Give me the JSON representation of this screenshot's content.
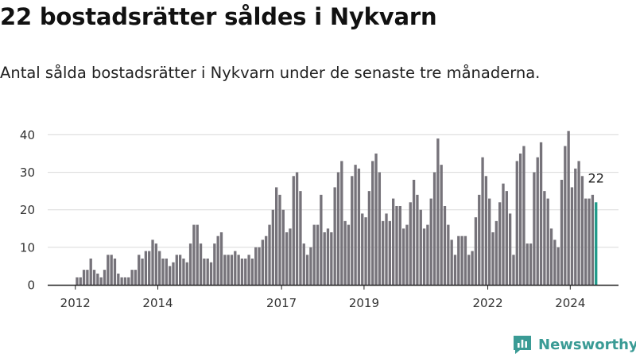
{
  "title": "22 bostadsrätter såldes i Nykvarn",
  "subtitle": "Antal sålda bostadsrätter i Nykvarn under de senaste tre månaderna.",
  "logo_text": "Newsworthy",
  "logo_icon": "newsworthy-logo-icon",
  "colors": {
    "bar": "#76737a",
    "highlight": "#1f9a8a",
    "grid": "#d9d9d9",
    "axis": "#222222",
    "logo": "#3a9b95"
  },
  "chart_data": {
    "type": "bar",
    "title": "",
    "xlabel": "",
    "ylabel": "",
    "ylim": [
      0,
      42
    ],
    "yticks": [
      0,
      10,
      20,
      30,
      40
    ],
    "xlim": [
      2011.33,
      2025.17
    ],
    "xticks": [
      {
        "label": "2012",
        "value": 2012.0
      },
      {
        "label": "2014",
        "value": 2014.0
      },
      {
        "label": "2017",
        "value": 2017.0
      },
      {
        "label": "2019",
        "value": 2019.0
      },
      {
        "label": "2022",
        "value": 2022.0
      },
      {
        "label": "2024",
        "value": 2024.0
      }
    ],
    "start": {
      "year": 2012,
      "month": 1
    },
    "values": [
      2,
      2,
      4,
      4,
      7,
      4,
      3,
      2,
      4,
      8,
      8,
      7,
      3,
      2,
      2,
      2,
      4,
      4,
      8,
      7,
      9,
      9,
      12,
      11,
      9,
      7,
      7,
      5,
      6,
      8,
      8,
      7,
      6,
      11,
      16,
      16,
      11,
      7,
      7,
      6,
      11,
      13,
      14,
      8,
      8,
      8,
      9,
      8,
      7,
      7,
      8,
      7,
      10,
      10,
      12,
      13,
      16,
      20,
      26,
      24,
      20,
      14,
      15,
      29,
      30,
      25,
      11,
      8,
      10,
      16,
      16,
      24,
      14,
      15,
      14,
      26,
      30,
      33,
      17,
      16,
      29,
      32,
      31,
      19,
      18,
      25,
      33,
      35,
      30,
      17,
      19,
      17,
      23,
      21,
      21,
      15,
      16,
      22,
      28,
      24,
      20,
      15,
      16,
      23,
      30,
      39,
      32,
      21,
      16,
      12,
      8,
      13,
      13,
      13,
      8,
      9,
      18,
      24,
      34,
      29,
      23,
      14,
      17,
      22,
      27,
      25,
      19,
      8,
      33,
      35,
      37,
      11,
      11,
      30,
      34,
      38,
      25,
      23,
      15,
      12,
      10,
      28,
      37,
      41,
      26,
      31,
      33,
      29,
      23,
      23,
      24,
      22
    ],
    "highlight_label": "22"
  }
}
